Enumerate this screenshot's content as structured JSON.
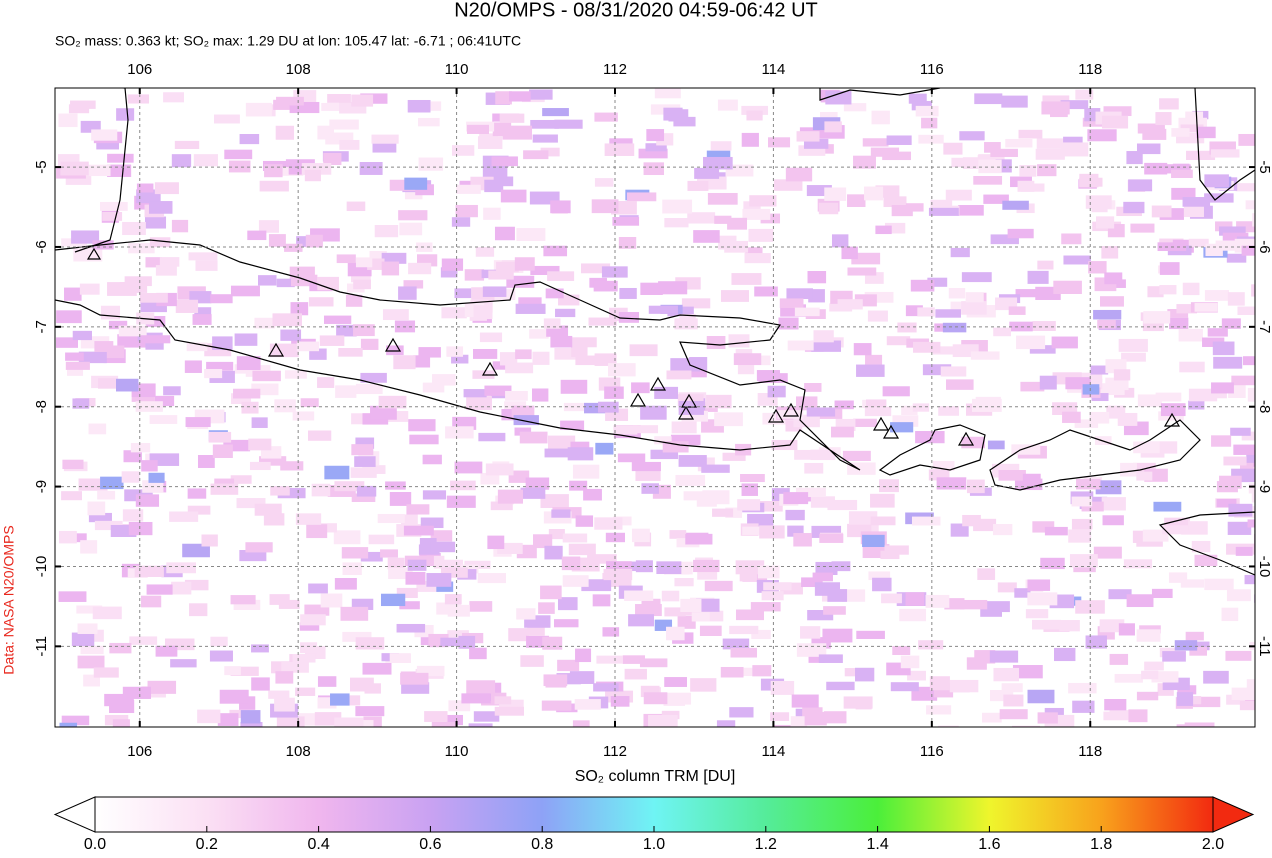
{
  "title": "N20/OMPS - 08/31/2020 04:59-06:42 UT",
  "subtitle": "SO₂ mass: 0.363 kt; SO₂ max: 1.29 DU at lon: 105.47 lat: -6.71 ; 06:41UTC",
  "credit": "Data: NASA N20/OMPS",
  "map": {
    "xlim": [
      104.93,
      120.08
    ],
    "ylim": [
      -12.01,
      -4.01
    ],
    "xticks": [
      106,
      108,
      110,
      112,
      114,
      116,
      118
    ],
    "yticks": [
      -5,
      -6,
      -7,
      -8,
      -9,
      -10,
      -11
    ],
    "grid": true
  },
  "colorbar": {
    "label": "SO₂ column TRM [DU]",
    "lim": [
      0,
      2
    ],
    "ticks": [
      {
        "value": 0,
        "label": "0.0"
      },
      {
        "value": 0.2,
        "label": "0.2"
      },
      {
        "value": 0.4,
        "label": "0.4"
      },
      {
        "value": 0.6,
        "label": "0.6"
      },
      {
        "value": 0.8,
        "label": "0.8"
      },
      {
        "value": 1,
        "label": "1.0"
      },
      {
        "value": 1.2,
        "label": "1.2"
      },
      {
        "value": 1.4,
        "label": "1.4"
      },
      {
        "value": 1.6,
        "label": "1.6"
      },
      {
        "value": 1.8,
        "label": "1.8"
      },
      {
        "value": 2,
        "label": "2.0"
      }
    ]
  }
}
